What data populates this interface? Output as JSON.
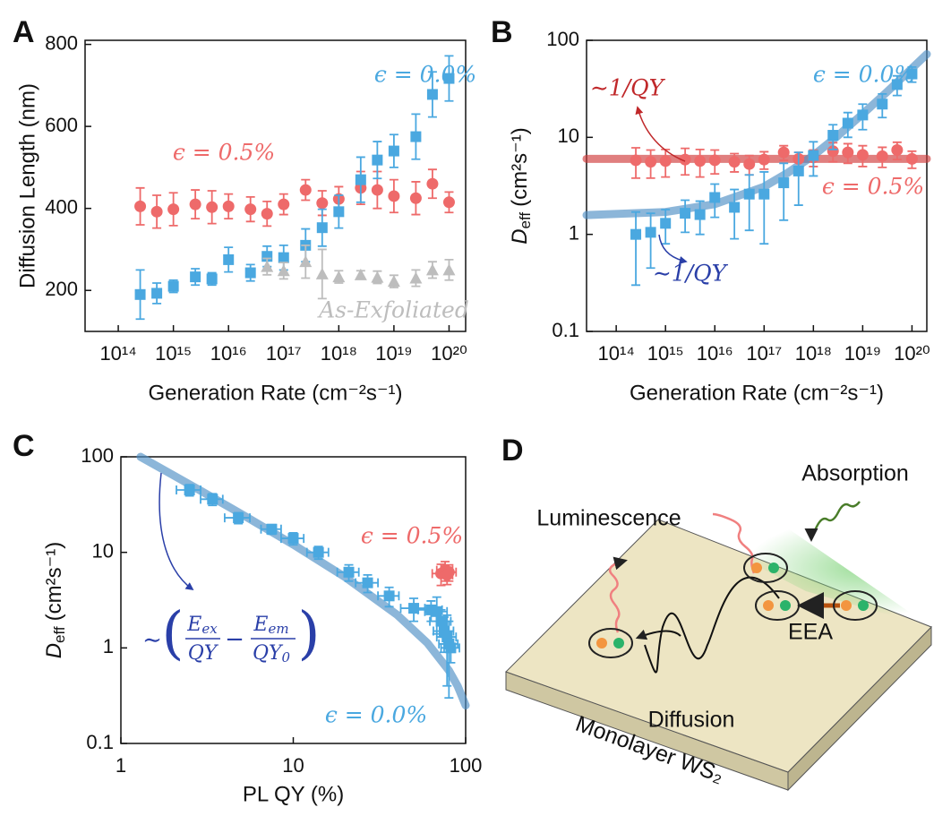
{
  "chart_data": [
    {
      "type": "scatter",
      "panel": "A",
      "x_label": "Generation Rate (cm⁻²s⁻¹)",
      "y_label": "Diffusion Length (nm)",
      "xscale": "log",
      "xlim": [
        25000000000000.0,
        2e+20
      ],
      "xticks": [
        {
          "value": 100000000000000.0,
          "label": "10¹⁴"
        },
        {
          "value": 1000000000000000.0,
          "label": "10¹⁵"
        },
        {
          "value": 1e+16,
          "label": "10¹⁶"
        },
        {
          "value": 1e+17,
          "label": "10¹⁷"
        },
        {
          "value": 1e+18,
          "label": "10¹⁸"
        },
        {
          "value": 1e+19,
          "label": "10¹⁹"
        },
        {
          "value": 1e+20,
          "label": "10²⁰"
        }
      ],
      "ylim": [
        100,
        810
      ],
      "yticks": [
        200,
        400,
        600,
        800
      ],
      "series": [
        {
          "kind": "scatter",
          "marker": "circle",
          "color": "#ee6a6a",
          "x": [
            250000000000000.0,
            500000000000000.0,
            1000000000000000.0,
            2500000000000000.0,
            5000000000000000.0,
            1e+16,
            2.5e+16,
            5e+16,
            1e+17,
            2.5e+17,
            5e+17,
            1e+18,
            2.5e+18,
            5e+18,
            1e+19,
            2.5e+19,
            5e+19,
            1e+20
          ],
          "values": [
            405,
            392,
            398,
            410,
            403,
            405,
            398,
            387,
            410,
            445,
            413,
            423,
            450,
            445,
            430,
            425,
            460,
            415
          ],
          "errors": [
            45,
            40,
            40,
            35,
            40,
            30,
            30,
            30,
            25,
            25,
            30,
            30,
            40,
            45,
            40,
            40,
            35,
            25
          ]
        },
        {
          "kind": "scatter",
          "marker": "square",
          "color": "#4aa8e0",
          "x": [
            250000000000000.0,
            500000000000000.0,
            1000000000000000.0,
            2500000000000000.0,
            5000000000000000.0,
            1e+16,
            2.5e+16,
            5e+16,
            1e+17,
            2.5e+17,
            5e+17,
            1e+18,
            2.5e+18,
            5e+18,
            1e+19,
            2.5e+19,
            5e+19,
            1e+20
          ],
          "values": [
            190,
            193,
            210,
            233,
            228,
            275,
            243,
            283,
            280,
            310,
            353,
            392,
            470,
            518,
            540,
            575,
            678,
            717
          ],
          "errors": [
            60,
            25,
            15,
            20,
            15,
            30,
            20,
            25,
            30,
            40,
            45,
            40,
            55,
            45,
            40,
            55,
            55,
            55
          ]
        },
        {
          "kind": "scatter",
          "marker": "triangle",
          "color": "#bdbdbd",
          "x": [
            5e+16,
            1e+17,
            2.5e+17,
            5e+17,
            1e+18,
            2.5e+18,
            5e+18,
            1e+19,
            2.5e+19,
            5e+19,
            1e+20
          ],
          "values": [
            258,
            248,
            270,
            240,
            233,
            238,
            232,
            222,
            230,
            250,
            250
          ],
          "errors": [
            20,
            20,
            40,
            60,
            15,
            10,
            15,
            15,
            20,
            20,
            25
          ]
        }
      ],
      "annotations": [
        {
          "text": "ϵ = 0.0%",
          "color": "#4aa8e0"
        },
        {
          "text": "ϵ = 0.5%",
          "color": "#ee6a6a"
        },
        {
          "text": "As-Exfoliated",
          "color": "#bdbdbd"
        }
      ]
    },
    {
      "type": "scatter",
      "panel": "B",
      "x_label": "Generation Rate (cm⁻²s⁻¹)",
      "y_label": {
        "symbol": "D",
        "subscript": "eff",
        "unit": "(cm²s⁻¹)"
      },
      "xscale": "log",
      "xlim": [
        25000000000000.0,
        2e+20
      ],
      "xticks": [
        {
          "value": 100000000000000.0,
          "label": "10¹⁴"
        },
        {
          "value": 1000000000000000.0,
          "label": "10¹⁵"
        },
        {
          "value": 1e+16,
          "label": "10¹⁶"
        },
        {
          "value": 1e+17,
          "label": "10¹⁷"
        },
        {
          "value": 1e+18,
          "label": "10¹⁸"
        },
        {
          "value": 1e+19,
          "label": "10¹⁹"
        },
        {
          "value": 1e+20,
          "label": "10²⁰"
        }
      ],
      "yscale": "log",
      "ylim": [
        0.1,
        100
      ],
      "yticks": [
        0.1,
        1,
        10,
        100
      ],
      "series": [
        {
          "kind": "line",
          "color": "#d03a3a",
          "opacity": 0.65,
          "width": 9,
          "x": [
            25000000000000.0,
            2e+20
          ],
          "values": [
            6,
            6
          ]
        },
        {
          "kind": "line",
          "color": "#4f8fc4",
          "opacity": 0.65,
          "width": 9,
          "x": [
            25000000000000.0,
            1000000000000000.0,
            1e+16,
            1e+17,
            3e+17,
            1e+18,
            3e+18,
            1e+19,
            3e+19,
            1e+20,
            2e+20
          ],
          "values": [
            1.58,
            1.7,
            2.05,
            3.1,
            4.3,
            6.5,
            10.2,
            17.4,
            28.9,
            51.5,
            72
          ]
        },
        {
          "kind": "scatter",
          "marker": "circle",
          "color": "#ee6a6a",
          "x": [
            250000000000000.0,
            500000000000000.0,
            1000000000000000.0,
            2500000000000000.0,
            5000000000000000.0,
            1e+16,
            2.5e+16,
            5e+16,
            1e+17,
            2.5e+17,
            5e+17,
            1e+18,
            2.5e+18,
            5e+18,
            1e+19,
            2.5e+19,
            5e+19,
            1e+20
          ],
          "values": [
            5.8,
            5.6,
            5.7,
            5.9,
            5.7,
            5.8,
            5.6,
            5.3,
            5.9,
            7,
            6,
            6.2,
            7.2,
            7,
            6.6,
            6.4,
            7.4,
            6
          ],
          "errors": [
            2,
            1.8,
            1.8,
            1.8,
            1.8,
            1.6,
            1.2,
            1.2,
            1.2,
            1.2,
            1,
            1.2,
            1.6,
            1.6,
            1.6,
            1.5,
            1.5,
            1.2
          ]
        },
        {
          "kind": "scatter",
          "marker": "square",
          "color": "#4aa8e0",
          "x": [
            250000000000000.0,
            500000000000000.0,
            1000000000000000.0,
            2500000000000000.0,
            5000000000000000.0,
            1e+16,
            2.5e+16,
            5e+16,
            1e+17,
            2.5e+17,
            5e+17,
            1e+18,
            2.5e+18,
            5e+18,
            1e+19,
            2.5e+19,
            5e+19,
            1e+20
          ],
          "values": [
            1.0,
            1.05,
            1.3,
            1.65,
            1.6,
            2.4,
            1.9,
            2.6,
            2.6,
            3.4,
            4.5,
            6.5,
            10.5,
            14,
            17,
            22,
            35,
            45
          ],
          "errors": [
            0.7,
            0.6,
            0.5,
            0.6,
            0.6,
            0.9,
            1.0,
            1.5,
            1.8,
            2.0,
            2.5,
            2.5,
            3,
            4,
            5,
            6,
            8,
            8
          ]
        }
      ],
      "annotations": [
        {
          "text": "∼1/QY",
          "color": "#c0282a"
        },
        {
          "text": "ϵ = 0.0%",
          "color": "#4aa8e0"
        },
        {
          "text": "ϵ = 0.5%",
          "color": "#ee6a6a"
        },
        {
          "text": "∼1/QY",
          "color": "#2a3fa8"
        }
      ]
    },
    {
      "type": "scatter",
      "panel": "C",
      "x_label": "PL QY (%)",
      "y_label": {
        "symbol": "D",
        "subscript": "eff",
        "unit": "(cm²s⁻¹)"
      },
      "xscale": "log",
      "xlim": [
        1,
        100
      ],
      "xticks": [
        1,
        10,
        100
      ],
      "yscale": "log",
      "ylim": [
        0.1,
        100
      ],
      "yticks": [
        0.1,
        1,
        10,
        100
      ],
      "series": [
        {
          "kind": "line",
          "color": "#4f8fc4",
          "opacity": 0.65,
          "width": 9,
          "x": [
            1.3,
            2,
            3,
            5,
            10,
            20,
            40,
            60,
            80,
            90,
            100
          ],
          "values": [
            99.9,
            64.6,
            42.7,
            25.2,
            12.07,
            5.5,
            2.22,
            1.125,
            0.58,
            0.396,
            0.25
          ]
        },
        {
          "kind": "scatter",
          "marker": "square",
          "color": "#4aa8e0",
          "x": [
            2.5,
            3.4,
            4.8,
            7.5,
            10,
            14,
            21,
            27,
            36,
            50,
            63,
            68,
            72,
            75,
            78,
            80,
            82
          ],
          "values": [
            45,
            36,
            23,
            17.5,
            14,
            10,
            6.2,
            4.8,
            3.5,
            2.6,
            2.5,
            2.4,
            1.9,
            1.5,
            1.3,
            1.1,
            1.0
          ],
          "errors": [
            6,
            5,
            3,
            2,
            2,
            1.5,
            1.2,
            1,
            0.8,
            0.7,
            0.6,
            1,
            0.6,
            0.6,
            0.9,
            0.8,
            0.3
          ],
          "x_errors": [
            0.4,
            0.5,
            0.8,
            1,
            1.5,
            2,
            3,
            4,
            5,
            8,
            10,
            10,
            10,
            10,
            10,
            10,
            10
          ]
        },
        {
          "kind": "scatter",
          "marker": "circle",
          "color": "#ee6a6a",
          "x": [
            72,
            76,
            80,
            78
          ],
          "values": [
            6,
            6.5,
            6.2,
            5.8
          ],
          "errors": [
            1.5,
            1.5,
            1.2,
            1.2
          ],
          "x_errors": [
            8,
            8,
            8,
            6
          ]
        }
      ],
      "annotations": [
        {
          "text": "ϵ = 0.5%",
          "color": "#ee6a6a"
        },
        {
          "text": "ϵ = 0.0%",
          "color": "#4aa8e0"
        }
      ],
      "formula": {
        "prefix": "∼",
        "open": "(",
        "close": ")",
        "minus": "−",
        "term1": {
          "numerator": "E",
          "numerator_sub": "ex",
          "denominator": "QY"
        },
        "term2": {
          "numerator": "E",
          "numerator_sub": "em",
          "denominator": "QY",
          "denominator_sub": "0"
        }
      }
    }
  ],
  "diagram": {
    "panel": "D",
    "labels": {
      "absorption": "Absorption",
      "luminescence": "Luminescence",
      "eea": "EEA",
      "diffusion": "Diffusion",
      "substrate": "Monolayer WS₂"
    }
  }
}
